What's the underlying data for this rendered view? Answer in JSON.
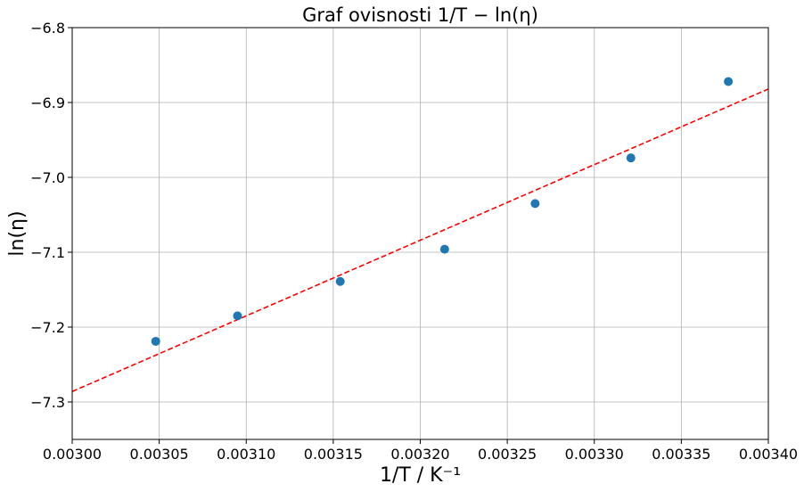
{
  "chart_data": {
    "type": "scatter",
    "title": "Graf ovisnosti 1/T − ln(η)",
    "xlabel": "1/T / K⁻¹",
    "ylabel": "ln(η)",
    "xlim": [
      0.003,
      0.0034
    ],
    "ylim": [
      -7.35,
      -6.8
    ],
    "grid": true,
    "x_ticks": [
      "0.00300",
      "0.00305",
      "0.00310",
      "0.00315",
      "0.00320",
      "0.00325",
      "0.00330",
      "0.00335",
      "0.00340"
    ],
    "y_ticks": [
      "−6.8",
      "−6.9",
      "−7.0",
      "−7.1",
      "−7.2",
      "−7.3"
    ],
    "x_tick_values": [
      0.003,
      0.00305,
      0.0031,
      0.00315,
      0.0032,
      0.00325,
      0.0033,
      0.00335,
      0.0034
    ],
    "y_tick_values": [
      -6.8,
      -6.9,
      -7.0,
      -7.1,
      -7.2,
      -7.3
    ],
    "series": [
      {
        "type": "scatter",
        "color": "#1f77b4",
        "x": [
          0.003048,
          0.003095,
          0.003154,
          0.003214,
          0.003266,
          0.003321,
          0.003377
        ],
        "y": [
          -7.219,
          -7.185,
          -7.139,
          -7.096,
          -7.035,
          -6.974,
          -6.872
        ]
      },
      {
        "type": "line",
        "style": "dashed",
        "color": "#ff0000",
        "x": [
          0.003,
          0.0034
        ],
        "y": [
          -7.286,
          -6.882
        ]
      }
    ]
  }
}
